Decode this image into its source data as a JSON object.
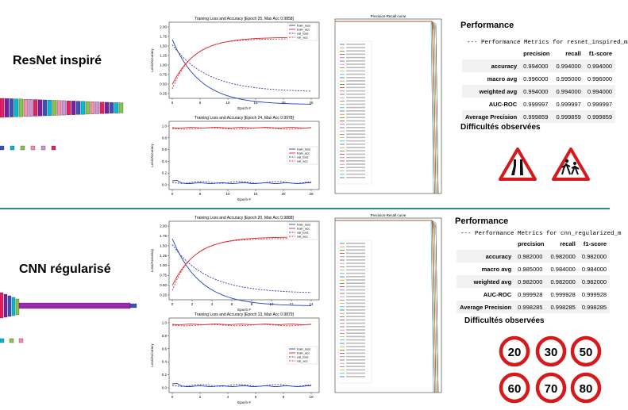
{
  "top": {
    "model_title": "ResNet inspiré",
    "loss_plot": {
      "title": "Training Loss and Accuracy [Epoch 25, Max Acc 0.9858]",
      "xlabel": "Epoch #",
      "ylabel": "Loss/Accuracy",
      "xticks": [
        "0",
        "5",
        "10",
        "15",
        "20",
        "25"
      ],
      "yticks": [
        "0.25",
        "0.50",
        "0.75",
        "1.00",
        "1.25",
        "1.50",
        "1.75",
        "2.00"
      ],
      "legend": [
        "train_loss",
        "train_acc",
        "val_loss",
        "val_acc"
      ]
    },
    "acc_plot": {
      "title": "Training Loss and Accuracy [Epoch 24, Max Acc 0.9978]",
      "xlabel": "Epoch #",
      "ylabel": "Loss/Accuracy",
      "xticks": [
        "0",
        "5",
        "10",
        "15",
        "20",
        "25"
      ],
      "yticks": [
        "0.0",
        "0.2",
        "0.4",
        "0.6",
        "0.8",
        "1.0"
      ],
      "legend": [
        "train_loss",
        "train_acc",
        "val_loss",
        "val_acc"
      ]
    },
    "pr_plot": {
      "title": "Precision-Recall curve"
    },
    "performance_title": "Performance",
    "performance_header": "--- Performance Metrics for resnet_inspired_m",
    "metrics": {
      "columns": [
        "precision",
        "recall",
        "f1-score"
      ],
      "rows": [
        {
          "label": "accuracy",
          "values": [
            "0.994000",
            "0.994000",
            "0.994000"
          ]
        },
        {
          "label": "macro avg",
          "values": [
            "0.996000",
            "0.995000",
            "0.996000"
          ]
        },
        {
          "label": "weighted avg",
          "values": [
            "0.994000",
            "0.994000",
            "0.994000"
          ]
        },
        {
          "label": "AUC-ROC",
          "values": [
            "0.999997",
            "0.999997",
            "0.999997"
          ]
        },
        {
          "label": "Average Precision",
          "values": [
            "0.999859",
            "0.999859",
            "0.999859"
          ]
        }
      ]
    },
    "difficulties_title": "Difficultés observées"
  },
  "bottom": {
    "model_title": "CNN régularisé",
    "loss_plot": {
      "title": "Training Loss and Accuracy [Epoch 20, Max Acc 0.9888]",
      "xlabel": "Epoch #",
      "ylabel": "Loss/Accuracy",
      "xticks": [
        "0",
        "2",
        "4",
        "6",
        "8",
        "10",
        "12",
        "14"
      ],
      "yticks": [
        "0.25",
        "0.50",
        "0.75",
        "1.00",
        "1.25",
        "1.50",
        "1.75",
        "2.00"
      ],
      "legend": [
        "train_loss",
        "train_acc",
        "val_loss",
        "val_acc"
      ]
    },
    "acc_plot": {
      "title": "Training Loss and Accuracy [Epoch 13, Max Acc 0.9879]",
      "xlabel": "Epoch #",
      "ylabel": "Loss/Accuracy",
      "xticks": [
        "0",
        "2",
        "4",
        "6",
        "8",
        "10"
      ],
      "yticks": [
        "0.0",
        "0.2",
        "0.4",
        "0.6",
        "0.8",
        "1.0"
      ],
      "legend": [
        "train_loss",
        "train_acc",
        "val_loss",
        "val_acc"
      ]
    },
    "pr_plot": {
      "title": "Precision-Recall curve"
    },
    "performance_title": "Performance",
    "performance_header": "--- Performance Metrics for cnn_regularized_m",
    "metrics": {
      "columns": [
        "precision",
        "recall",
        "f1-score"
      ],
      "rows": [
        {
          "label": "accuracy",
          "values": [
            "0.982000",
            "0.982000",
            "0.982000"
          ]
        },
        {
          "label": "macro avg",
          "values": [
            "0.985000",
            "0.984000",
            "0.984000"
          ]
        },
        {
          "label": "weighted avg",
          "values": [
            "0.982000",
            "0.982000",
            "0.982000"
          ]
        },
        {
          "label": "AUC-ROC",
          "values": [
            "0.999928",
            "0.999928",
            "0.999928"
          ]
        },
        {
          "label": "Average Precision",
          "values": [
            "0.998285",
            "0.998285",
            "0.998285"
          ]
        }
      ]
    },
    "difficulties_title": "Difficultés observées",
    "speed_signs": [
      "20",
      "30",
      "50",
      "60",
      "70",
      "80"
    ]
  },
  "colors": {
    "train_loss": "#1f3fbf",
    "train_acc": "#d62728",
    "val_loss": "#4b2fa8",
    "val_acc": "#e0303a",
    "divider": "#2e8b8b"
  }
}
